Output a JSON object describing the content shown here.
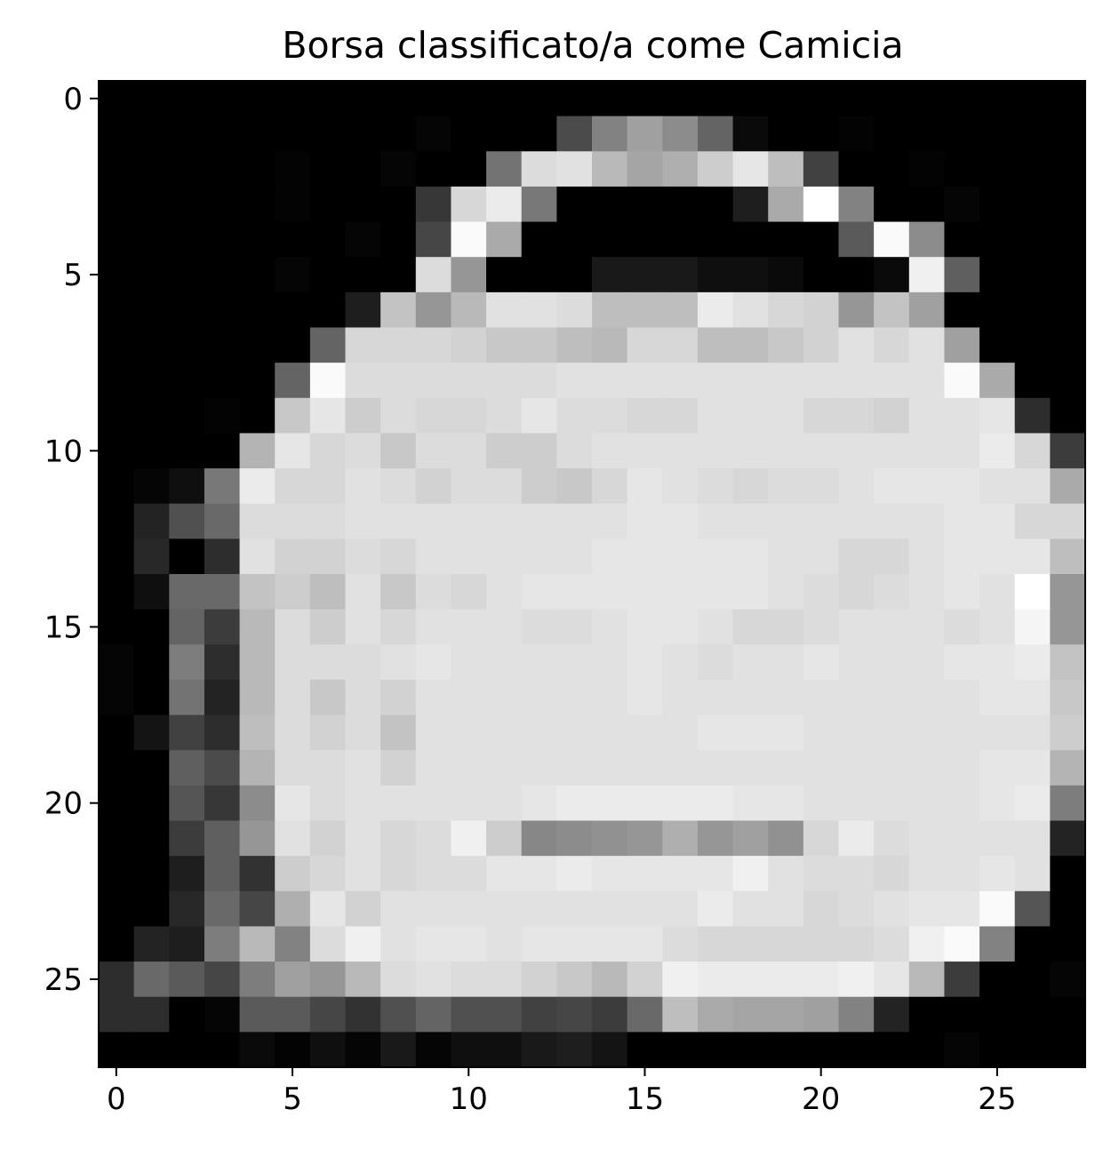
{
  "chart_data": {
    "type": "heatmap",
    "title": "Borsa classificato/a come Camicia",
    "xlabel": "",
    "ylabel": "",
    "colormap": "gray",
    "vmin": 0,
    "vmax": 255,
    "grid": false,
    "xlim": [
      -0.5,
      27.5
    ],
    "ylim": [
      27.5,
      -0.5
    ],
    "x_ticks": [
      0,
      5,
      10,
      15,
      20,
      25
    ],
    "y_ticks": [
      0,
      5,
      10,
      15,
      20,
      25
    ],
    "x_tick_labels": [
      "0",
      "5",
      "10",
      "15",
      "20",
      "25"
    ],
    "y_tick_labels": [
      "0",
      "5",
      "10",
      "15",
      "20",
      "25"
    ],
    "rows": 28,
    "cols": 28,
    "values": [
      [
        0,
        0,
        0,
        0,
        0,
        0,
        0,
        0,
        0,
        0,
        0,
        0,
        0,
        0,
        0,
        0,
        0,
        0,
        0,
        0,
        0,
        0,
        0,
        0,
        0,
        0,
        0,
        0
      ],
      [
        0,
        0,
        0,
        0,
        0,
        0,
        0,
        0,
        0,
        5,
        0,
        0,
        0,
        75,
        130,
        160,
        140,
        100,
        10,
        0,
        0,
        3,
        0,
        0,
        0,
        0,
        0,
        0
      ],
      [
        0,
        0,
        0,
        0,
        0,
        3,
        0,
        0,
        5,
        0,
        0,
        115,
        220,
        225,
        185,
        165,
        175,
        205,
        230,
        190,
        65,
        0,
        0,
        3,
        0,
        0,
        0,
        0
      ],
      [
        0,
        0,
        0,
        0,
        0,
        3,
        0,
        0,
        0,
        55,
        215,
        235,
        120,
        0,
        0,
        0,
        0,
        0,
        30,
        170,
        255,
        130,
        0,
        0,
        5,
        0,
        0,
        0
      ],
      [
        0,
        0,
        0,
        0,
        0,
        0,
        0,
        5,
        0,
        70,
        250,
        170,
        0,
        0,
        0,
        0,
        0,
        0,
        0,
        0,
        0,
        90,
        250,
        140,
        0,
        0,
        0,
        0
      ],
      [
        0,
        0,
        0,
        0,
        0,
        5,
        0,
        0,
        0,
        220,
        150,
        0,
        0,
        0,
        25,
        25,
        25,
        15,
        15,
        10,
        0,
        0,
        10,
        240,
        95,
        0,
        0,
        0
      ],
      [
        0,
        0,
        0,
        0,
        0,
        0,
        0,
        30,
        195,
        150,
        185,
        225,
        225,
        220,
        190,
        190,
        190,
        235,
        225,
        215,
        210,
        150,
        195,
        160,
        0,
        0,
        0,
        0
      ],
      [
        0,
        0,
        0,
        0,
        0,
        0,
        100,
        215,
        215,
        215,
        210,
        200,
        200,
        190,
        185,
        215,
        215,
        190,
        190,
        200,
        210,
        225,
        215,
        225,
        160,
        0,
        0,
        0
      ],
      [
        0,
        0,
        0,
        0,
        0,
        100,
        250,
        220,
        220,
        220,
        220,
        220,
        220,
        225,
        225,
        225,
        225,
        225,
        225,
        225,
        225,
        225,
        225,
        225,
        250,
        170,
        0,
        0
      ],
      [
        0,
        0,
        0,
        3,
        0,
        200,
        230,
        205,
        220,
        215,
        215,
        220,
        230,
        220,
        220,
        215,
        215,
        225,
        225,
        225,
        215,
        215,
        210,
        225,
        225,
        230,
        45,
        0
      ],
      [
        0,
        0,
        0,
        0,
        180,
        230,
        215,
        220,
        200,
        220,
        220,
        205,
        205,
        220,
        225,
        225,
        225,
        225,
        225,
        225,
        225,
        225,
        225,
        225,
        225,
        235,
        215,
        60
      ],
      [
        0,
        5,
        15,
        120,
        235,
        215,
        215,
        225,
        220,
        210,
        220,
        220,
        205,
        200,
        215,
        230,
        225,
        220,
        215,
        220,
        220,
        225,
        230,
        230,
        230,
        225,
        225,
        170
      ],
      [
        0,
        35,
        80,
        105,
        220,
        220,
        220,
        225,
        225,
        225,
        225,
        225,
        225,
        225,
        225,
        230,
        230,
        225,
        225,
        225,
        225,
        225,
        225,
        225,
        230,
        230,
        215,
        215
      ],
      [
        0,
        40,
        0,
        45,
        225,
        210,
        210,
        220,
        215,
        225,
        225,
        225,
        225,
        225,
        230,
        230,
        230,
        230,
        230,
        225,
        225,
        215,
        215,
        225,
        230,
        230,
        230,
        190
      ],
      [
        0,
        15,
        105,
        105,
        195,
        205,
        190,
        225,
        200,
        220,
        215,
        225,
        230,
        230,
        230,
        230,
        230,
        230,
        230,
        225,
        220,
        215,
        220,
        225,
        230,
        225,
        255,
        150
      ],
      [
        0,
        0,
        100,
        60,
        185,
        220,
        205,
        225,
        215,
        225,
        225,
        225,
        220,
        220,
        225,
        230,
        230,
        225,
        215,
        215,
        220,
        225,
        225,
        225,
        220,
        225,
        245,
        150
      ],
      [
        5,
        0,
        125,
        45,
        185,
        220,
        220,
        220,
        225,
        230,
        225,
        225,
        225,
        225,
        225,
        230,
        225,
        220,
        225,
        225,
        230,
        225,
        225,
        225,
        230,
        230,
        235,
        195
      ],
      [
        5,
        0,
        115,
        35,
        185,
        220,
        200,
        220,
        210,
        225,
        225,
        225,
        225,
        225,
        225,
        230,
        225,
        225,
        225,
        225,
        225,
        225,
        225,
        225,
        225,
        230,
        230,
        200
      ],
      [
        0,
        20,
        65,
        45,
        190,
        220,
        210,
        220,
        195,
        225,
        225,
        225,
        225,
        225,
        225,
        225,
        225,
        230,
        230,
        230,
        225,
        225,
        225,
        225,
        225,
        225,
        225,
        205
      ],
      [
        0,
        0,
        95,
        75,
        180,
        220,
        220,
        225,
        210,
        225,
        225,
        225,
        225,
        225,
        225,
        225,
        225,
        225,
        225,
        225,
        225,
        225,
        225,
        225,
        225,
        230,
        230,
        180
      ],
      [
        0,
        0,
        85,
        55,
        140,
        230,
        220,
        225,
        225,
        225,
        225,
        225,
        230,
        235,
        235,
        235,
        235,
        235,
        230,
        230,
        225,
        225,
        225,
        225,
        225,
        230,
        235,
        125
      ],
      [
        0,
        0,
        60,
        95,
        150,
        225,
        210,
        225,
        215,
        220,
        240,
        205,
        135,
        140,
        145,
        150,
        175,
        150,
        160,
        145,
        215,
        235,
        220,
        225,
        225,
        225,
        225,
        35
      ],
      [
        0,
        0,
        30,
        95,
        50,
        205,
        215,
        225,
        215,
        220,
        220,
        230,
        230,
        235,
        230,
        230,
        230,
        230,
        240,
        225,
        220,
        220,
        215,
        225,
        225,
        230,
        225,
        0
      ],
      [
        0,
        0,
        40,
        105,
        70,
        175,
        230,
        210,
        225,
        225,
        225,
        225,
        225,
        225,
        225,
        225,
        225,
        235,
        225,
        225,
        215,
        220,
        225,
        230,
        230,
        250,
        85,
        0
      ],
      [
        0,
        35,
        30,
        125,
        185,
        130,
        220,
        240,
        225,
        230,
        230,
        225,
        230,
        230,
        230,
        230,
        220,
        215,
        215,
        215,
        215,
        215,
        220,
        240,
        250,
        130,
        0,
        0
      ],
      [
        45,
        105,
        90,
        70,
        125,
        160,
        150,
        185,
        220,
        225,
        220,
        220,
        210,
        200,
        185,
        210,
        240,
        235,
        235,
        235,
        235,
        240,
        230,
        185,
        60,
        0,
        0,
        5
      ],
      [
        45,
        45,
        0,
        5,
        90,
        90,
        70,
        50,
        80,
        100,
        80,
        80,
        65,
        70,
        60,
        105,
        190,
        170,
        165,
        165,
        160,
        130,
        35,
        0,
        0,
        0,
        0,
        0
      ],
      [
        0,
        0,
        0,
        0,
        10,
        3,
        15,
        5,
        25,
        5,
        15,
        15,
        25,
        30,
        20,
        0,
        0,
        0,
        0,
        0,
        0,
        0,
        0,
        0,
        5,
        0,
        0,
        0
      ]
    ]
  }
}
